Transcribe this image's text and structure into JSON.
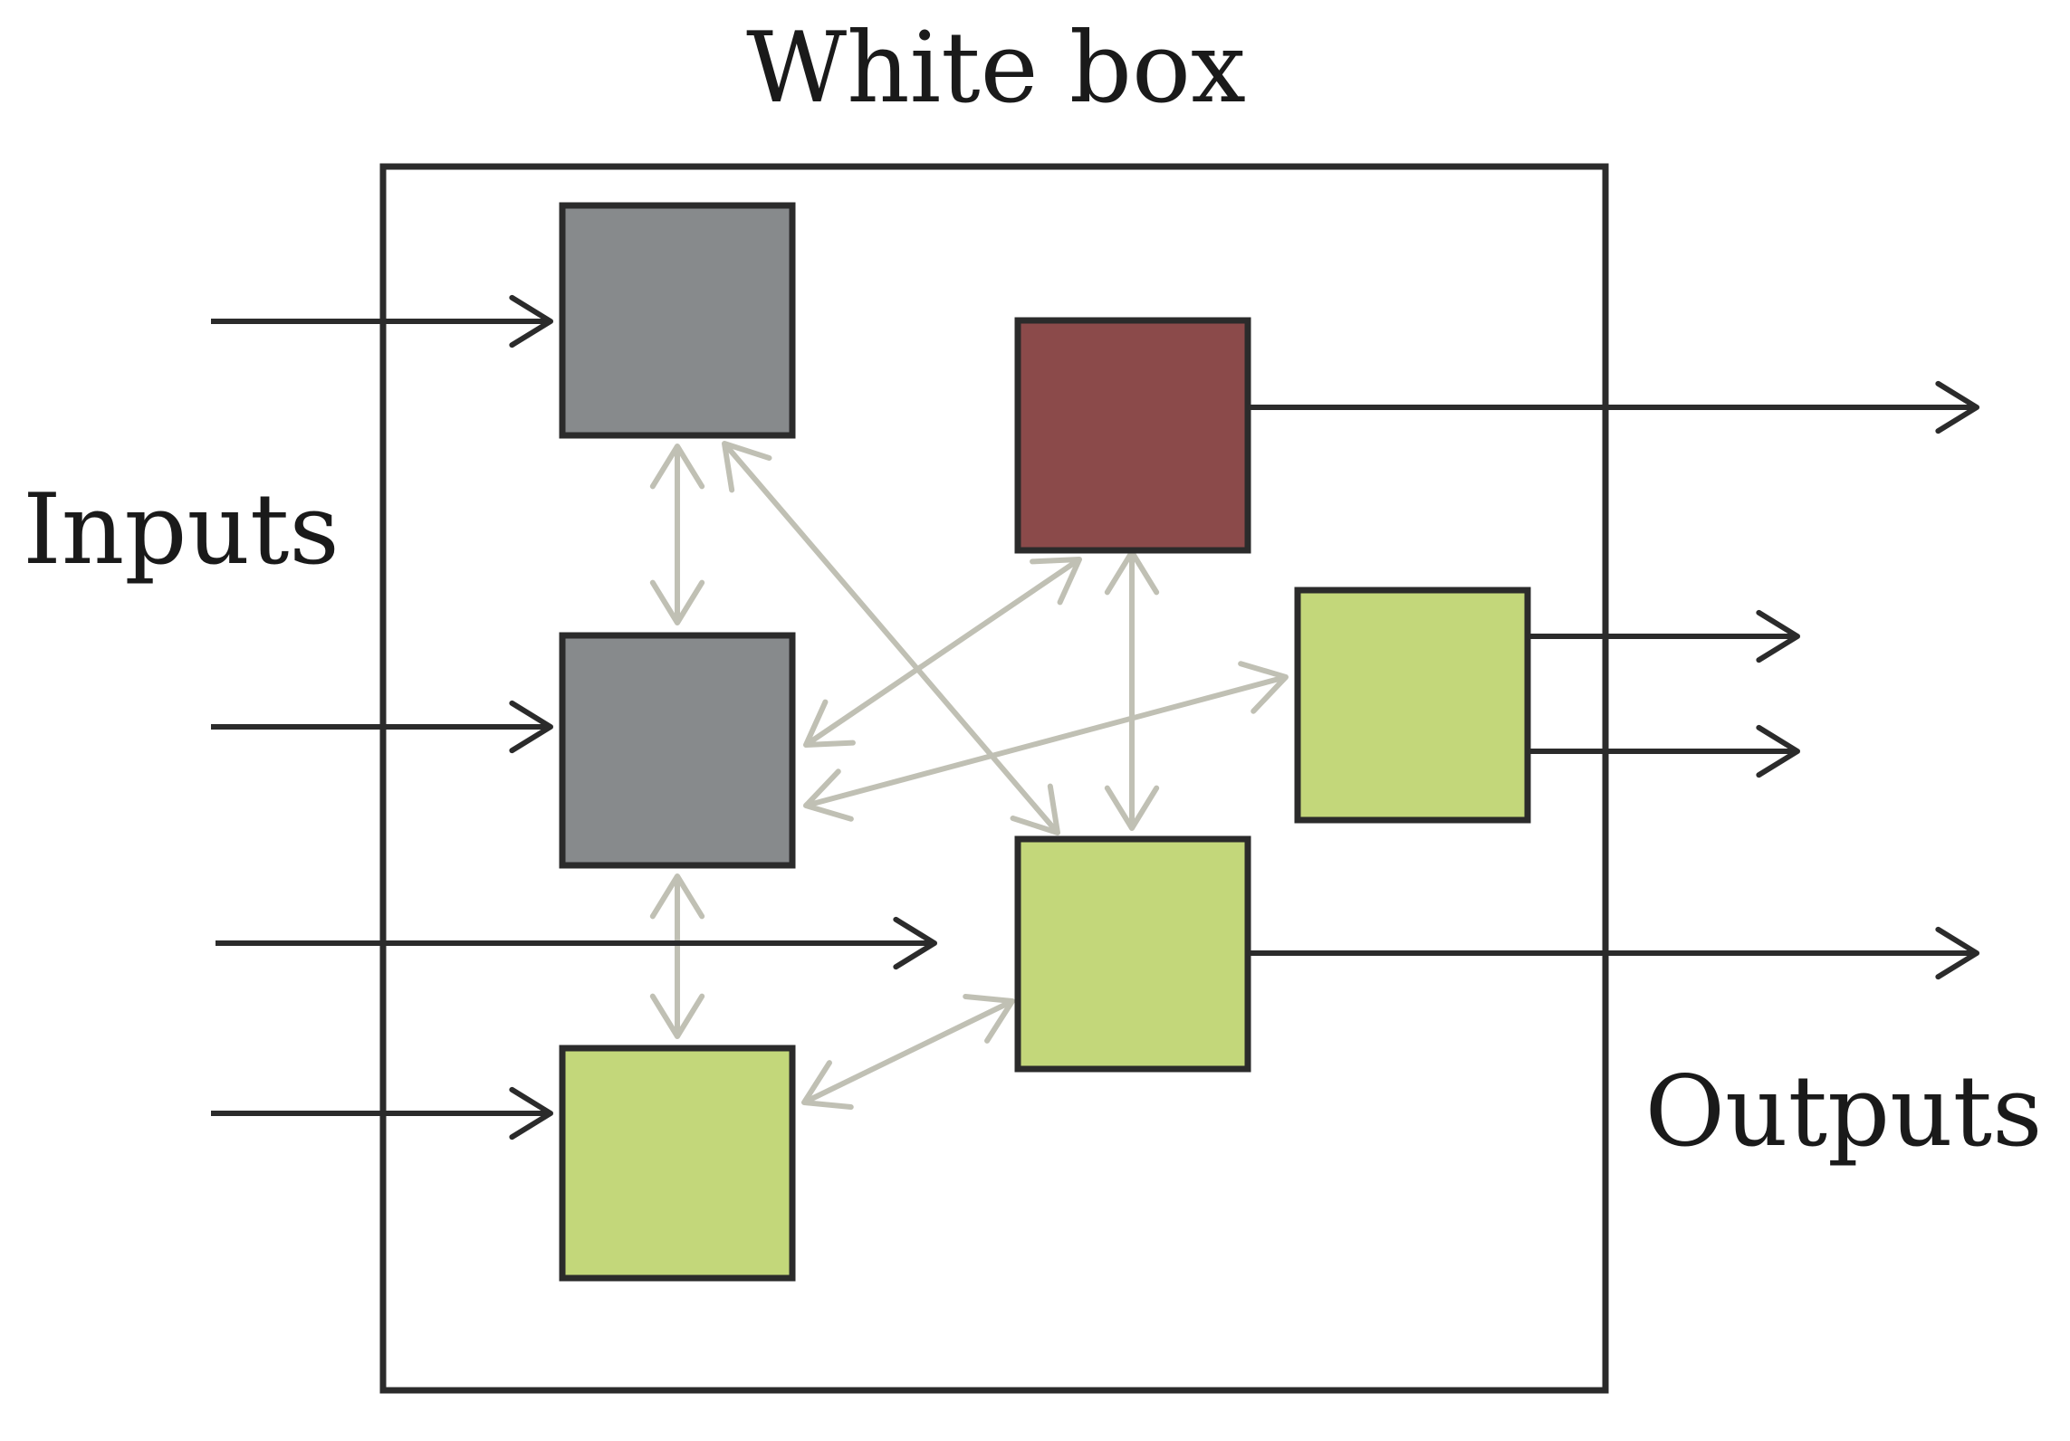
{
  "title": "White box",
  "inputs_label": "Inputs",
  "outputs_label": "Outputs",
  "colors": {
    "outline": "#2b2b2b",
    "hidden_node": "#878a8c",
    "highlight_node": "#8b4a4a",
    "leaf_node": "#c3d77a",
    "internal_link": "#c0c0b4",
    "io_arrow": "#2b2b2b"
  },
  "nodes": [
    {
      "id": "gray-top",
      "kind": "hidden_node"
    },
    {
      "id": "gray-middle",
      "kind": "hidden_node"
    },
    {
      "id": "green-bottom-left",
      "kind": "leaf_node"
    },
    {
      "id": "red",
      "kind": "highlight_node"
    },
    {
      "id": "green-right",
      "kind": "leaf_node"
    },
    {
      "id": "green-center",
      "kind": "leaf_node"
    }
  ],
  "internal_links": [
    {
      "from": "gray-top",
      "to": "gray-middle",
      "bidirectional": true
    },
    {
      "from": "gray-middle",
      "to": "green-bottom-left",
      "bidirectional": true
    },
    {
      "from": "gray-top",
      "to": "green-center",
      "bidirectional": true
    },
    {
      "from": "gray-middle",
      "to": "red",
      "bidirectional": true
    },
    {
      "from": "gray-middle",
      "to": "green-right",
      "bidirectional": true
    },
    {
      "from": "red",
      "to": "green-center",
      "bidirectional": true
    },
    {
      "from": "green-bottom-left",
      "to": "green-center",
      "bidirectional": true
    }
  ],
  "inputs": [
    {
      "to": "gray-top"
    },
    {
      "to": "gray-middle"
    },
    {
      "to": "green-center"
    },
    {
      "to": "green-bottom-left"
    }
  ],
  "outputs": [
    {
      "from": "red"
    },
    {
      "from": "green-right"
    },
    {
      "from": "green-right"
    },
    {
      "from": "green-center"
    }
  ]
}
